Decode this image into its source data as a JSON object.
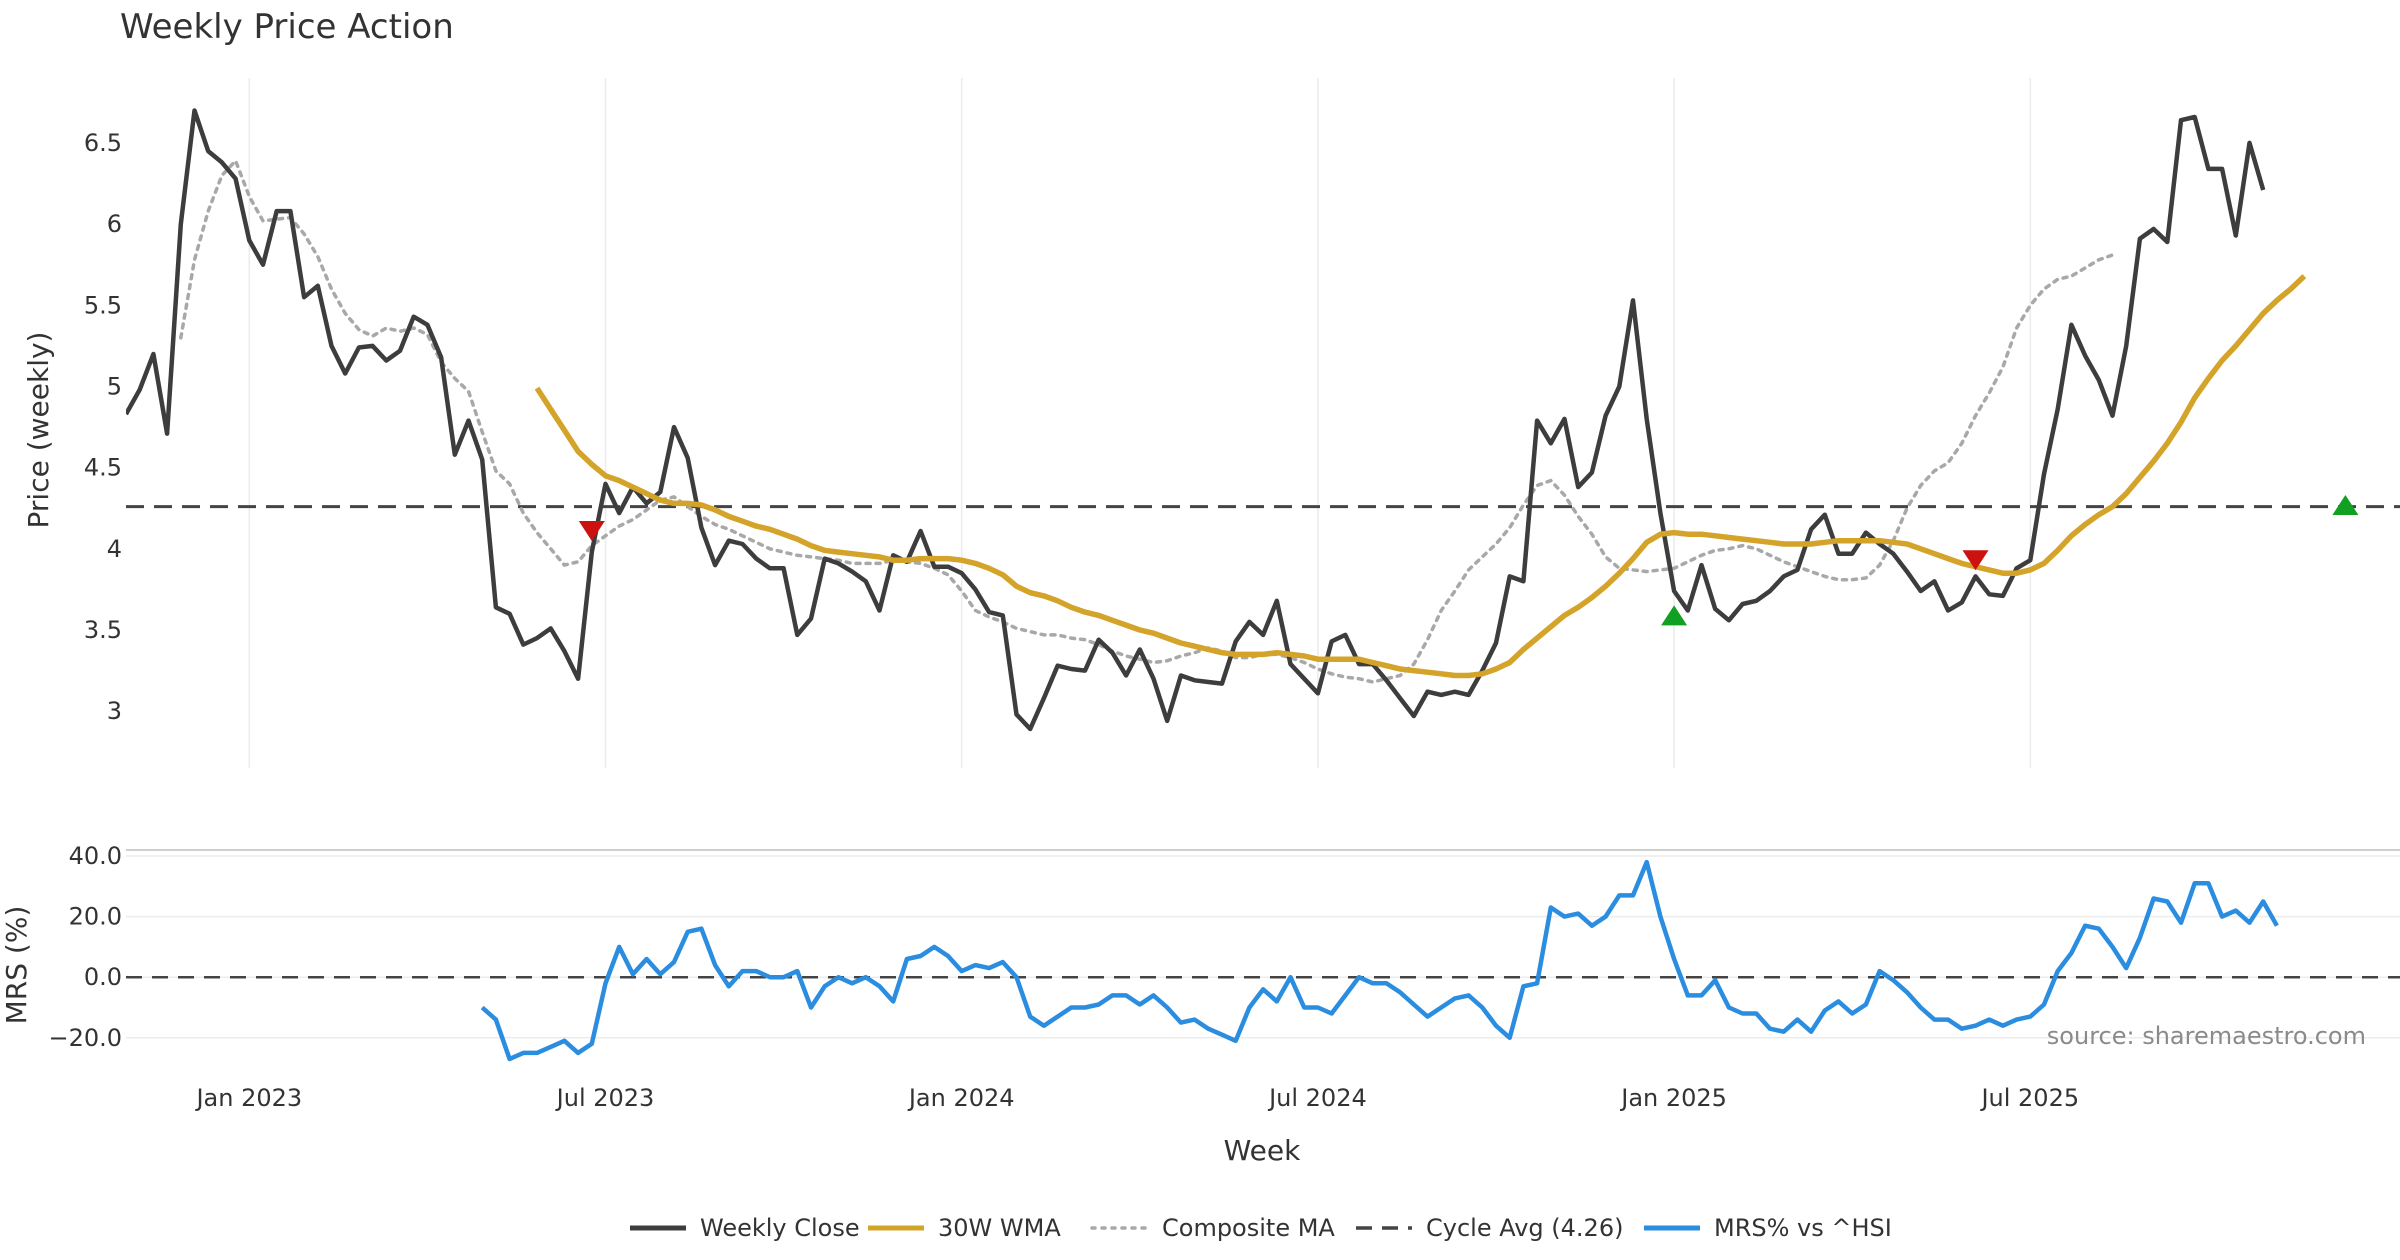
{
  "chart_data": {
    "type": "line",
    "title": "Weekly Price Action",
    "xlabel": "Week",
    "source": "source: sharemaestro.com",
    "x_ticks": [
      "Jan 2023",
      "Jul 2023",
      "Jan 2024",
      "Jul 2024",
      "Jan 2025",
      "Jul 2025"
    ],
    "x_start_week_offset": -9,
    "price_panel": {
      "ylabel": "Price (weekly)",
      "ylim": [
        2.65,
        6.9
      ],
      "y_ticks": [
        3,
        3.5,
        4,
        4.5,
        5,
        5.5,
        6,
        6.5
      ],
      "y_tick_labels": [
        "3",
        "3.5",
        "4",
        "4.5",
        "5",
        "5.5",
        "6",
        "6.5"
      ],
      "cycle_avg": 4.26,
      "weekly_close": [
        4.83,
        4.98,
        5.2,
        4.71,
        6.0,
        6.7,
        6.45,
        6.38,
        6.28,
        5.9,
        5.75,
        6.08,
        6.08,
        5.55,
        5.62,
        5.25,
        5.08,
        5.24,
        5.25,
        5.16,
        5.22,
        5.43,
        5.38,
        5.18,
        4.58,
        4.79,
        4.55,
        3.64,
        3.6,
        3.41,
        3.45,
        3.51,
        3.37,
        3.2,
        3.98,
        4.4,
        4.22,
        4.38,
        4.28,
        4.35,
        4.75,
        4.56,
        4.13,
        3.9,
        4.05,
        4.03,
        3.94,
        3.88,
        3.88,
        3.47,
        3.57,
        3.94,
        3.91,
        3.86,
        3.8,
        3.62,
        3.96,
        3.92,
        4.11,
        3.89,
        3.89,
        3.85,
        3.75,
        3.61,
        3.59,
        2.98,
        2.89,
        3.08,
        3.28,
        3.26,
        3.25,
        3.44,
        3.36,
        3.22,
        3.38,
        3.2,
        2.94,
        3.22,
        3.19,
        3.18,
        3.17,
        3.43,
        3.55,
        3.47,
        3.68,
        3.29,
        3.2,
        3.11,
        3.43,
        3.47,
        3.29,
        3.29,
        3.19,
        3.08,
        2.97,
        3.12,
        3.1,
        3.12,
        3.1,
        3.25,
        3.42,
        3.83,
        3.8,
        4.79,
        4.65,
        4.8,
        4.38,
        4.47,
        4.82,
        5.0,
        5.53,
        4.8,
        4.22,
        3.74,
        3.62,
        3.9,
        3.63,
        3.56,
        3.66,
        3.68,
        3.74,
        3.83,
        3.87,
        4.12,
        4.21,
        3.97,
        3.97,
        4.1,
        4.03,
        3.97,
        3.86,
        3.74,
        3.8,
        3.62,
        3.67,
        3.83,
        3.72,
        3.71,
        3.88,
        3.93,
        4.46,
        4.86,
        5.38,
        5.19,
        5.04,
        4.82,
        5.25,
        5.91,
        5.97,
        5.89,
        6.64,
        6.66,
        6.34,
        6.34,
        5.93,
        6.5,
        6.21
      ],
      "wma30_start_index": 30,
      "wma30": [
        4.99,
        4.86,
        4.73,
        4.6,
        4.52,
        4.45,
        4.42,
        4.38,
        4.34,
        4.3,
        4.28,
        4.28,
        4.27,
        4.24,
        4.2,
        4.17,
        4.14,
        4.12,
        4.09,
        4.06,
        4.02,
        3.99,
        3.98,
        3.97,
        3.96,
        3.95,
        3.93,
        3.93,
        3.94,
        3.94,
        3.94,
        3.93,
        3.91,
        3.88,
        3.84,
        3.77,
        3.73,
        3.71,
        3.68,
        3.64,
        3.61,
        3.59,
        3.56,
        3.53,
        3.5,
        3.48,
        3.45,
        3.42,
        3.4,
        3.38,
        3.36,
        3.35,
        3.35,
        3.35,
        3.36,
        3.35,
        3.34,
        3.32,
        3.32,
        3.32,
        3.32,
        3.3,
        3.28,
        3.26,
        3.25,
        3.24,
        3.23,
        3.22,
        3.22,
        3.23,
        3.26,
        3.3,
        3.38,
        3.45,
        3.52,
        3.59,
        3.64,
        3.7,
        3.77,
        3.85,
        3.94,
        4.04,
        4.09,
        4.1,
        4.09,
        4.09,
        4.08,
        4.07,
        4.06,
        4.05,
        4.04,
        4.03,
        4.03,
        4.03,
        4.04,
        4.05,
        4.05,
        4.05,
        4.05,
        4.04,
        4.03,
        4.0,
        3.97,
        3.94,
        3.91,
        3.89,
        3.87,
        3.85,
        3.85,
        3.87,
        3.91,
        3.99,
        4.08,
        4.15,
        4.21,
        4.26,
        4.34,
        4.44,
        4.54,
        4.65,
        4.78,
        4.93,
        5.05,
        5.16,
        5.25,
        5.35,
        5.45,
        5.53,
        5.6,
        5.68
      ],
      "composite_ma_start_index": 4,
      "composite_ma": [
        5.3,
        5.78,
        6.08,
        6.3,
        6.39,
        6.17,
        6.02,
        6.03,
        6.04,
        5.94,
        5.8,
        5.6,
        5.45,
        5.35,
        5.31,
        5.36,
        5.34,
        5.36,
        5.32,
        5.15,
        5.05,
        4.97,
        4.72,
        4.48,
        4.4,
        4.22,
        4.1,
        4.0,
        3.9,
        3.92,
        4.02,
        4.08,
        4.14,
        4.18,
        4.24,
        4.3,
        4.32,
        4.26,
        4.2,
        4.15,
        4.12,
        4.08,
        4.04,
        4.0,
        3.98,
        3.96,
        3.95,
        3.94,
        3.93,
        3.91,
        3.91,
        3.91,
        3.93,
        3.92,
        3.91,
        3.88,
        3.84,
        3.74,
        3.62,
        3.58,
        3.55,
        3.51,
        3.49,
        3.47,
        3.47,
        3.45,
        3.44,
        3.41,
        3.37,
        3.34,
        3.32,
        3.3,
        3.31,
        3.34,
        3.36,
        3.39,
        3.37,
        3.33,
        3.33,
        3.35,
        3.35,
        3.33,
        3.3,
        3.26,
        3.23,
        3.21,
        3.2,
        3.18,
        3.2,
        3.22,
        3.29,
        3.44,
        3.62,
        3.74,
        3.87,
        3.95,
        4.03,
        4.13,
        4.27,
        4.39,
        4.42,
        4.33,
        4.2,
        4.09,
        3.95,
        3.88,
        3.87,
        3.86,
        3.87,
        3.88,
        3.92,
        3.96,
        3.99,
        4.0,
        4.02,
        4.0,
        3.96,
        3.92,
        3.89,
        3.86,
        3.83,
        3.81,
        3.81,
        3.82,
        3.9,
        4.05,
        4.25,
        4.39,
        4.48,
        4.53,
        4.65,
        4.82,
        4.96,
        5.12,
        5.36,
        5.5,
        5.6,
        5.66,
        5.68,
        5.73,
        5.78,
        5.81
      ],
      "sell_signals": [
        [
          34,
          4.11
        ],
        [
          135,
          3.93
        ]
      ],
      "buy_signals": [
        [
          113,
          3.59
        ],
        [
          162,
          4.27
        ]
      ]
    },
    "mrs_panel": {
      "ylabel": "MRS (%)",
      "ylim": [
        -28,
        42
      ],
      "y_ticks": [
        -20,
        0,
        20,
        40
      ],
      "y_tick_labels": [
        "−20.0",
        "0.0",
        "20.0",
        "40.0"
      ],
      "mrs_start_index": 26,
      "mrs": [
        -10,
        -14,
        -27,
        -25,
        -25,
        -23,
        -21,
        -25,
        -22,
        -2,
        10,
        1,
        6,
        1,
        5,
        15,
        16,
        4,
        -3,
        2,
        2,
        0,
        0,
        2,
        -10,
        -3,
        0,
        -2,
        0,
        -3,
        -8,
        6,
        7,
        10,
        7,
        2,
        4,
        3,
        5,
        0,
        -13,
        -16,
        -13,
        -10,
        -10,
        -9,
        -6,
        -6,
        -9,
        -6,
        -10,
        -15,
        -14,
        -17,
        -19,
        -21,
        -10,
        -4,
        -8,
        0,
        -10,
        -10,
        -12,
        -6,
        0,
        -2,
        -2,
        -5,
        -9,
        -13,
        -10,
        -7,
        -6,
        -10,
        -16,
        -20,
        -3,
        -2,
        23,
        20,
        21,
        17,
        20,
        27,
        27,
        38,
        20,
        6,
        -6,
        -6,
        -1,
        -10,
        -12,
        -12,
        -17,
        -18,
        -14,
        -18,
        -11,
        -8,
        -12,
        -9,
        2,
        -1,
        -5,
        -10,
        -14,
        -14,
        -17,
        -16,
        -14,
        -16,
        -14,
        -13,
        -9,
        2,
        8,
        17,
        16,
        10,
        3,
        13,
        26,
        25,
        18,
        31,
        31,
        20,
        22,
        18,
        25,
        17
      ]
    },
    "legend": [
      {
        "label": "Weekly Close",
        "color": "#3d3d3d",
        "style": "solid"
      },
      {
        "label": "30W WMA",
        "color": "#d4a32a",
        "style": "solid"
      },
      {
        "label": "Composite MA",
        "color": "#a8a8a8",
        "style": "dotted"
      },
      {
        "label": "Cycle Avg (4.26)",
        "color": "#444444",
        "style": "dashed"
      },
      {
        "label": "MRS% vs ^HSI",
        "color": "#2b8de0",
        "style": "solid"
      }
    ],
    "colors": {
      "close": "#3d3d3d",
      "wma": "#d4a32a",
      "composite": "#a8a8a8",
      "cycle": "#444444",
      "mrs": "#2b8de0",
      "sell": "#cc1111",
      "buy": "#11a022"
    }
  }
}
